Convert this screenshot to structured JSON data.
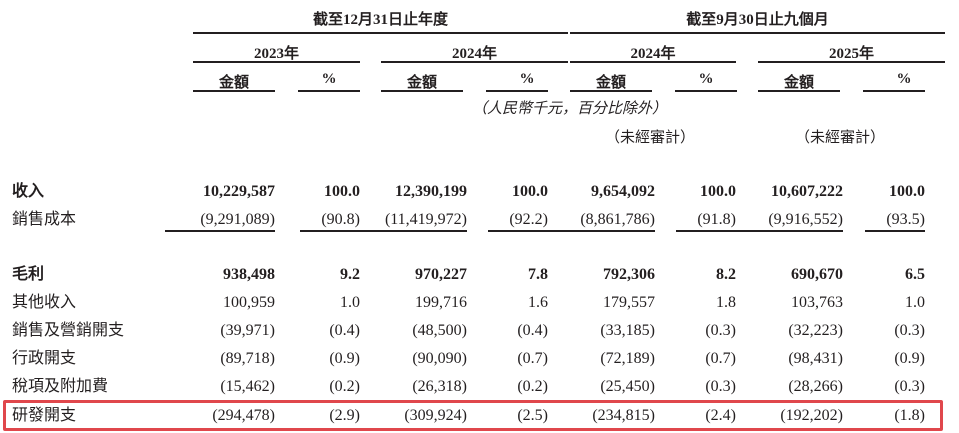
{
  "header": {
    "period_fy": "截至12月31日止年度",
    "period_9m": "截至9月30日止九個月",
    "years": [
      "2023年",
      "2024年",
      "2024年",
      "2025年"
    ],
    "amount_label": "金額",
    "pct_label": "%",
    "unit_note": "（人民幣千元，百分比除外）",
    "unaudited": "（未經審計）"
  },
  "rows": [
    {
      "label": "收入",
      "bold": true,
      "values": [
        "10,229,587",
        "100.0",
        "12,390,199",
        "100.0",
        "9,654,092",
        "100.0",
        "10,607,222",
        "100.0"
      ]
    },
    {
      "label": "銷售成本",
      "bold": false,
      "underline": true,
      "values": [
        "(9,291,089)",
        "(90.8)",
        "(11,419,972)",
        "(92.2)",
        "(8,861,786)",
        "(91.8)",
        "(9,916,552)",
        "(93.5)"
      ]
    },
    {
      "label": "毛利",
      "bold": true,
      "values": [
        "938,498",
        "9.2",
        "970,227",
        "7.8",
        "792,306",
        "8.2",
        "690,670",
        "6.5"
      ]
    },
    {
      "label": "其他收入",
      "bold": false,
      "values": [
        "100,959",
        "1.0",
        "199,716",
        "1.6",
        "179,557",
        "1.8",
        "103,763",
        "1.0"
      ]
    },
    {
      "label": "銷售及營銷開支",
      "bold": false,
      "values": [
        "(39,971)",
        "(0.4)",
        "(48,500)",
        "(0.4)",
        "(33,185)",
        "(0.3)",
        "(32,223)",
        "(0.3)"
      ]
    },
    {
      "label": "行政開支",
      "bold": false,
      "values": [
        "(89,718)",
        "(0.9)",
        "(90,090)",
        "(0.7)",
        "(72,189)",
        "(0.7)",
        "(98,431)",
        "(0.9)"
      ]
    },
    {
      "label": "稅項及附加費",
      "bold": false,
      "values": [
        "(15,462)",
        "(0.2)",
        "(26,318)",
        "(0.2)",
        "(25,450)",
        "(0.3)",
        "(28,266)",
        "(0.3)"
      ]
    },
    {
      "label": "研發開支",
      "bold": false,
      "highlighted": true,
      "values": [
        "(294,478)",
        "(2.9)",
        "(309,924)",
        "(2.5)",
        "(234,815)",
        "(2.4)",
        "(192,202)",
        "(1.8)"
      ]
    }
  ],
  "highlight_color": "#e0474c"
}
